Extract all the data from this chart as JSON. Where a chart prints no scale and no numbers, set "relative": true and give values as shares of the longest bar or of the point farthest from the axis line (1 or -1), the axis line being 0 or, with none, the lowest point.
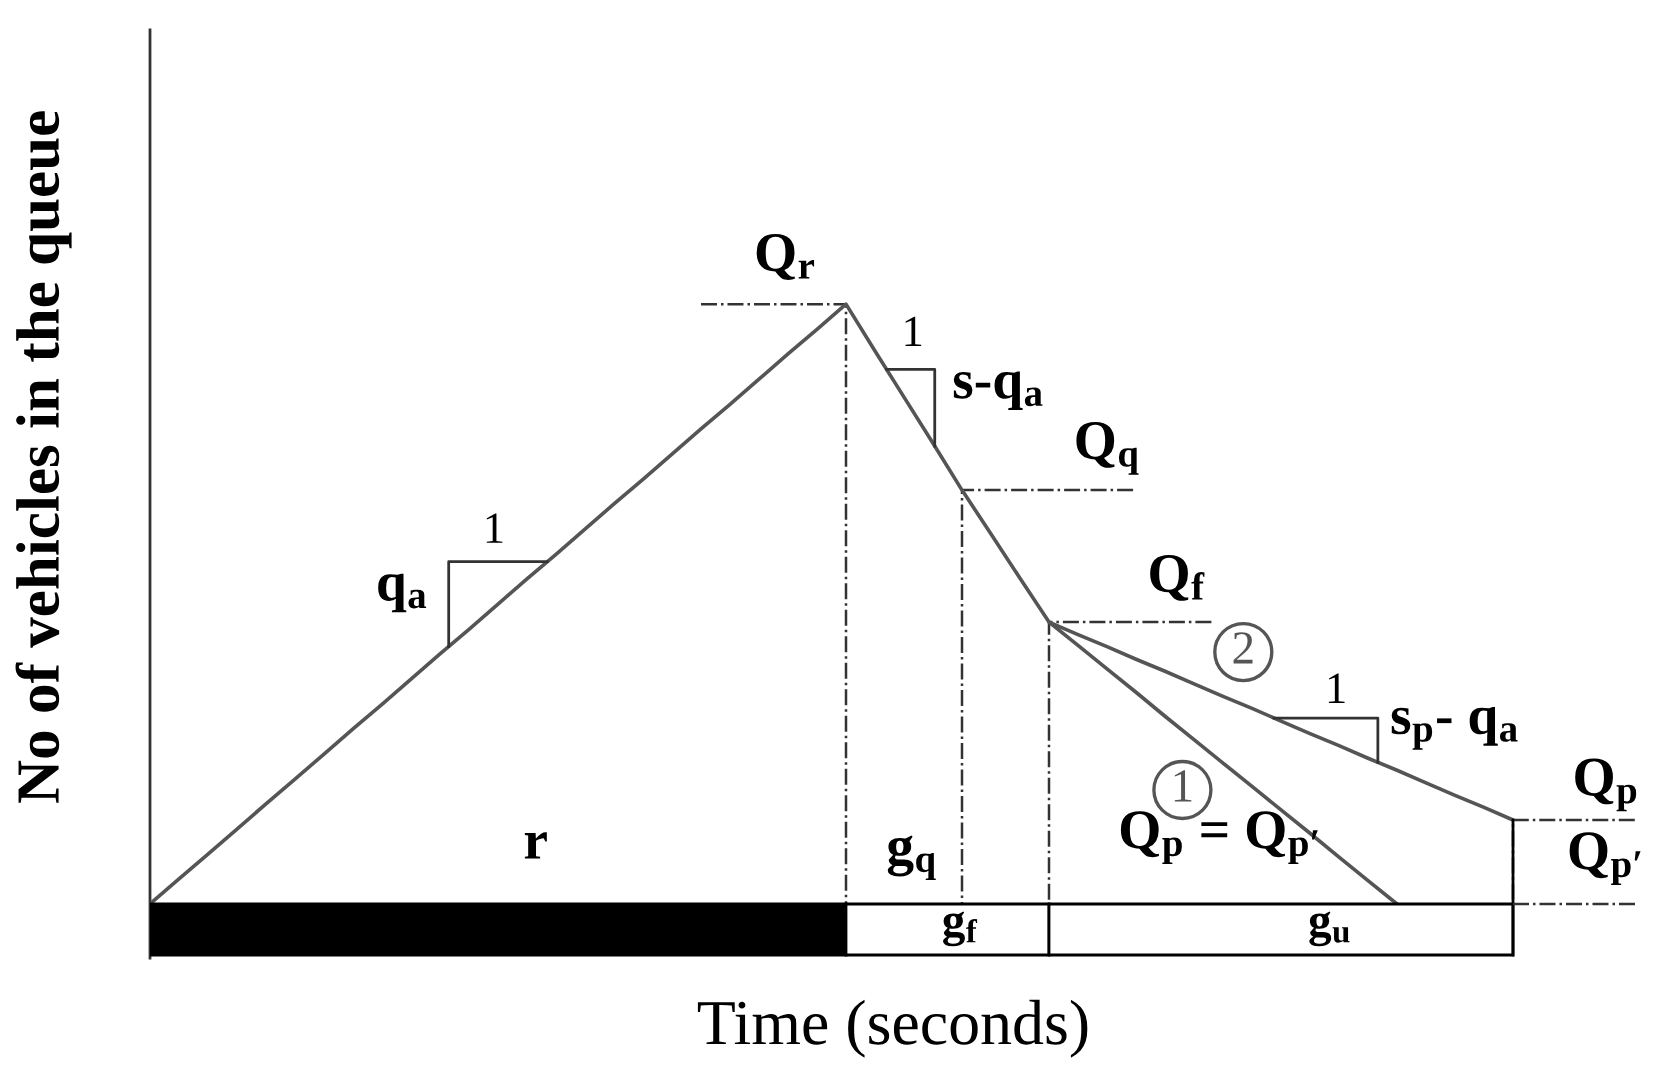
{
  "chart_data": {
    "type": "line",
    "relative": true,
    "xlabel": "Time (seconds)",
    "ylabel": "No of vehicles in the queue",
    "categories": [
      null,
      null,
      null,
      null,
      null,
      null,
      null,
      null,
      null,
      null,
      null,
      null,
      null,
      null,
      null,
      null,
      null,
      null,
      null,
      null,
      null,
      null,
      null,
      null,
      null,
      null,
      null,
      null,
      null,
      null,
      null,
      null,
      null,
      null,
      null,
      null,
      null,
      null,
      null,
      null,
      null,
      null,
      null,
      null,
      null,
      null,
      null,
      null
    ],
    "series": [
      {
        "name": "1",
        "color": "#555555",
        "values": [
          0,
          0.042,
          0.083,
          0.125,
          0.167,
          0.208,
          0.25,
          0.292,
          0.333,
          0.375,
          0.417,
          0.458,
          0.5,
          0.542,
          0.583,
          0.625,
          0.667,
          0.708,
          0.75,
          0.792,
          0.833,
          0.875,
          0.917,
          0.958,
          1,
          0.922,
          0.845,
          0.768,
          0.69,
          0.617,
          0.543,
          0.47,
          0.431,
          0.392,
          0.353,
          0.313,
          0.274,
          0.235,
          0.196,
          0.157,
          0.118,
          0.078,
          0.039,
          0,
          null,
          null,
          null,
          null
        ]
      },
      {
        "name": "2",
        "color": "#555555",
        "values": [
          null,
          null,
          null,
          null,
          null,
          null,
          null,
          null,
          null,
          null,
          null,
          null,
          null,
          null,
          null,
          null,
          null,
          null,
          null,
          null,
          null,
          null,
          null,
          null,
          null,
          null,
          null,
          null,
          null,
          null,
          null,
          0.47,
          0.449,
          0.429,
          0.408,
          0.388,
          0.367,
          0.346,
          0.326,
          0.305,
          0.284,
          0.264,
          0.243,
          0.223,
          0.202,
          0.181,
          0.161,
          0.14
        ]
      }
    ],
    "ref_lines": [
      {
        "axis": "y",
        "value": 1,
        "label": "Q$_{r}$",
        "color": "#333333",
        "line_style": "dashdot"
      },
      {
        "axis": "y",
        "value": 0.69,
        "label": "Q$_{q}$",
        "color": "#333333",
        "line_style": "dashdot"
      },
      {
        "axis": "y",
        "value": 0.47,
        "label": "Q$_{f}$",
        "color": "#333333",
        "line_style": "dashdot"
      },
      {
        "axis": "y",
        "value": 0.14,
        "label": "Q$_{p}$",
        "color": "#333333",
        "line_style": "dashdot"
      }
    ],
    "annotations": [
      "1",
      "q$_{a}$",
      "1",
      "s-q$_{a}$",
      "1",
      "s$_{p}$- q$_{a}$",
      "Q$_{p}$ = Q$_{p′}$",
      "Q$_{p′}$",
      "r",
      "g$_{q}$",
      "g$_{f}$",
      "g$_{u}$"
    ]
  }
}
